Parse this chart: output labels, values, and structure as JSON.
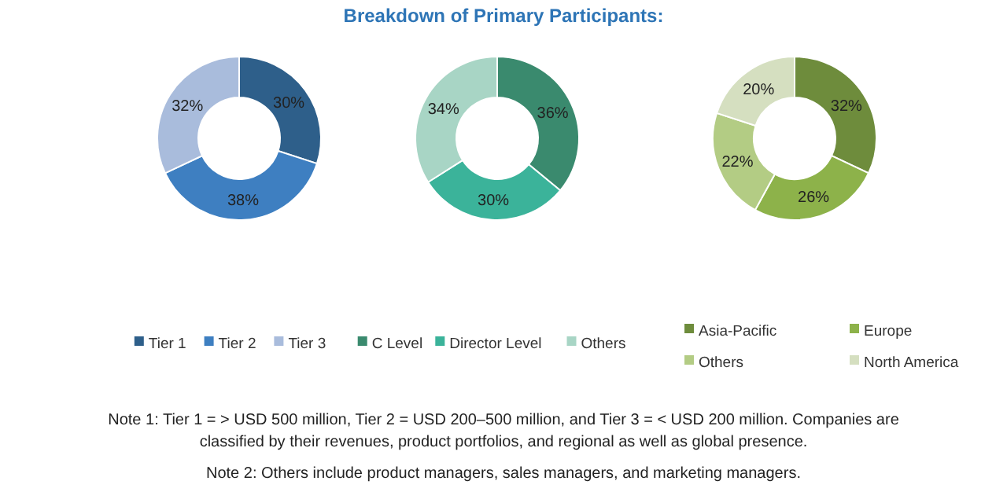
{
  "chart_data": [
    {
      "type": "donut",
      "categories": [
        "Tier 1",
        "Tier 2",
        "Tier 3"
      ],
      "values": [
        30,
        38,
        32
      ],
      "colors": [
        "#2e5f8a",
        "#3e7fc1",
        "#a9bcdc"
      ],
      "value_labels": [
        "30%",
        "38%",
        "32%"
      ],
      "legend": "bottom"
    },
    {
      "type": "donut",
      "title": "Breakdown of Primary Participants:",
      "categories": [
        "C Level",
        "Director Level",
        "Others"
      ],
      "values": [
        36,
        30,
        34
      ],
      "colors": [
        "#3a8a6e",
        "#3bb39a",
        "#a8d5c5"
      ],
      "value_labels": [
        "36%",
        "30%",
        "34%"
      ],
      "legend": "bottom",
      "annotations": [
        "Note 1: Tier 1 = > USD 500 million, Tier 2 = USD 200–500 million, and Tier 3 = < USD 200 million. Companies are classified by their revenues, product portfolios, and regional as well as global presence.",
        "Note 2: Others include product managers, sales managers, and marketing managers."
      ]
    },
    {
      "type": "donut",
      "categories": [
        "Asia-Pacific",
        "Europe",
        "Others",
        "North America"
      ],
      "values": [
        32,
        26,
        22,
        20
      ],
      "colors": [
        "#6e8c3c",
        "#8db24a",
        "#b3cc84",
        "#d5dfc0"
      ],
      "value_labels": [
        "32%",
        "26%",
        "22%",
        "20%"
      ],
      "legend": "bottom"
    }
  ]
}
